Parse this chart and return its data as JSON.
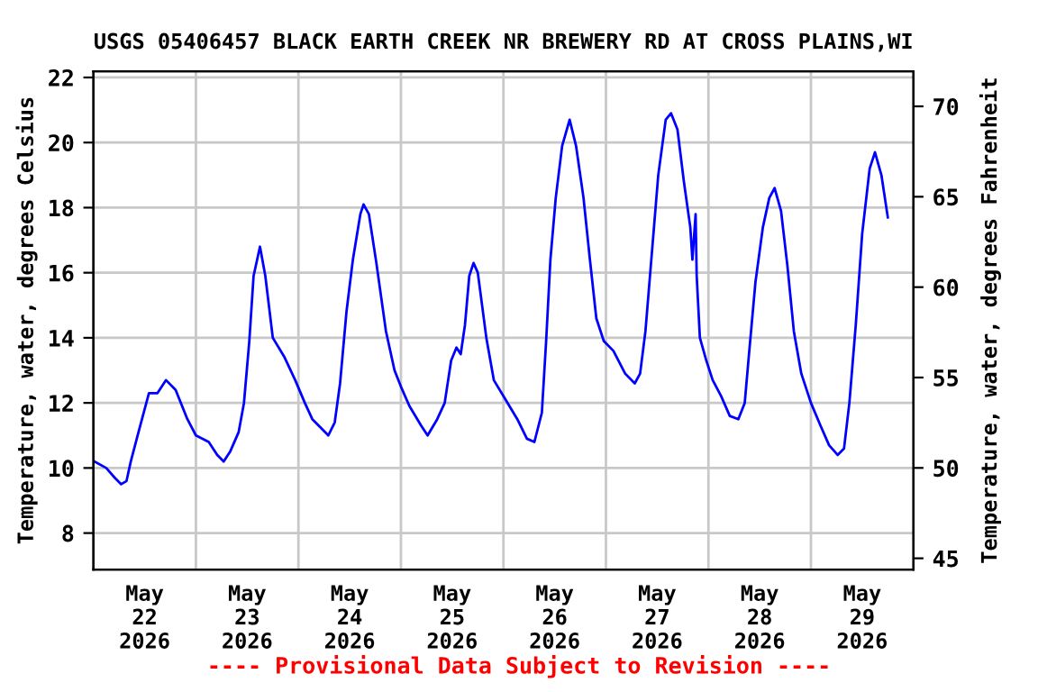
{
  "chart_data": {
    "type": "line",
    "title": "USGS 05406457 BLACK EARTH CREEK NR BREWERY RD AT CROSS PLAINS,WI",
    "ylabel": "Temperature, water, degrees Celsius",
    "y2label": "Temperature, water, degrees Fahrenheit",
    "annotations": [
      "---- Provisional Data Subject to Revision ----"
    ],
    "series": [
      {
        "color": "#0000ff",
        "x": [
          "2026-05-22T00:15",
          "2026-05-22T03:00",
          "2026-05-22T05:00",
          "2026-05-22T06:30",
          "2026-05-22T07:45",
          "2026-05-22T08:45",
          "2026-05-22T10:45",
          "2026-05-22T13:00",
          "2026-05-22T15:00",
          "2026-05-22T17:00",
          "2026-05-22T19:15",
          "2026-05-22T22:00",
          "2026-05-23T00:00",
          "2026-05-23T03:00",
          "2026-05-23T05:00",
          "2026-05-23T06:30",
          "2026-05-23T08:00",
          "2026-05-23T10:00",
          "2026-05-23T11:15",
          "2026-05-23T12:30",
          "2026-05-23T13:30",
          "2026-05-23T15:00",
          "2026-05-23T16:15",
          "2026-05-23T18:00",
          "2026-05-23T20:45",
          "2026-05-23T23:15",
          "2026-05-24T01:30",
          "2026-05-24T03:15",
          "2026-05-24T05:30",
          "2026-05-24T07:00",
          "2026-05-24T08:30",
          "2026-05-24T09:45",
          "2026-05-24T11:15",
          "2026-05-24T12:45",
          "2026-05-24T14:30",
          "2026-05-24T15:15",
          "2026-05-24T16:30",
          "2026-05-24T18:15",
          "2026-05-24T20:30",
          "2026-05-24T22:30",
          "2026-05-25T00:00",
          "2026-05-25T02:00",
          "2026-05-25T04:45",
          "2026-05-25T06:15",
          "2026-05-25T08:30",
          "2026-05-25T10:15",
          "2026-05-25T11:45",
          "2026-05-25T13:00",
          "2026-05-25T14:00",
          "2026-05-25T15:00",
          "2026-05-25T16:00",
          "2026-05-25T17:00",
          "2026-05-25T18:00",
          "2026-05-25T20:00",
          "2026-05-25T21:45",
          "2026-05-26T00:30",
          "2026-05-26T03:15",
          "2026-05-26T05:30",
          "2026-05-26T07:15",
          "2026-05-26T09:00",
          "2026-05-26T10:00",
          "2026-05-26T11:00",
          "2026-05-26T12:15",
          "2026-05-26T13:45",
          "2026-05-26T15:30",
          "2026-05-26T17:00",
          "2026-05-26T18:45",
          "2026-05-26T20:15",
          "2026-05-26T21:45",
          "2026-05-26T23:30",
          "2026-05-27T01:45",
          "2026-05-27T04:30",
          "2026-05-27T06:45",
          "2026-05-27T08:00",
          "2026-05-27T09:15",
          "2026-05-27T10:45",
          "2026-05-27T12:15",
          "2026-05-27T14:00",
          "2026-05-27T15:15",
          "2026-05-27T16:45",
          "2026-05-27T18:15",
          "2026-05-27T19:45",
          "2026-05-27T20:15",
          "2026-05-27T21:00",
          "2026-05-27T21:15",
          "2026-05-27T22:00",
          "2026-05-27T23:30",
          "2026-05-28T01:00",
          "2026-05-28T03:00",
          "2026-05-28T05:00",
          "2026-05-28T07:00",
          "2026-05-28T08:30",
          "2026-05-28T09:30",
          "2026-05-28T11:00",
          "2026-05-28T12:45",
          "2026-05-28T14:15",
          "2026-05-28T15:30",
          "2026-05-28T17:00",
          "2026-05-28T18:30",
          "2026-05-28T20:00",
          "2026-05-28T21:45",
          "2026-05-29T00:00",
          "2026-05-29T02:15",
          "2026-05-29T04:15",
          "2026-05-29T06:15",
          "2026-05-29T07:45",
          "2026-05-29T09:00",
          "2026-05-29T10:30",
          "2026-05-29T12:00",
          "2026-05-29T13:45",
          "2026-05-29T15:00",
          "2026-05-29T16:30",
          "2026-05-29T18:00"
        ],
        "values": [
          10.2,
          10.0,
          9.7,
          9.5,
          9.6,
          10.2,
          11.2,
          12.3,
          12.3,
          12.7,
          12.4,
          11.5,
          11.0,
          10.8,
          10.4,
          10.2,
          10.5,
          11.1,
          12.0,
          13.9,
          15.9,
          16.8,
          15.9,
          14.0,
          13.4,
          12.7,
          12.0,
          11.5,
          11.2,
          11.0,
          11.4,
          12.6,
          14.8,
          16.4,
          17.8,
          18.1,
          17.8,
          16.3,
          14.2,
          13.0,
          12.5,
          11.9,
          11.3,
          11.0,
          11.5,
          12.0,
          13.3,
          13.7,
          13.5,
          14.4,
          15.9,
          16.3,
          16.0,
          14.0,
          12.7,
          12.1,
          11.5,
          10.9,
          10.8,
          11.7,
          13.9,
          16.4,
          18.3,
          19.9,
          20.7,
          19.9,
          18.3,
          16.4,
          14.6,
          13.9,
          13.6,
          12.9,
          12.6,
          12.9,
          14.2,
          16.6,
          19.0,
          20.7,
          20.9,
          20.4,
          18.8,
          17.4,
          16.4,
          17.8,
          15.9,
          14.0,
          13.3,
          12.7,
          12.2,
          11.6,
          11.5,
          12.0,
          13.5,
          15.7,
          17.4,
          18.3,
          18.6,
          17.9,
          16.2,
          14.2,
          12.9,
          12.0,
          11.3,
          10.7,
          10.4,
          10.6,
          12.0,
          14.4,
          17.2,
          19.2,
          19.7,
          19.0,
          17.7
        ]
      }
    ],
    "xlim": [
      "2026-05-22T00:00",
      "2026-05-30T00:00"
    ],
    "xticks": [
      {
        "value": "2026-05-22T12:00",
        "label": "May\n22\n2026"
      },
      {
        "value": "2026-05-23T00:00",
        "label": null
      },
      {
        "value": "2026-05-23T12:00",
        "label": "May\n23\n2026"
      },
      {
        "value": "2026-05-24T00:00",
        "label": null
      },
      {
        "value": "2026-05-24T12:00",
        "label": "May\n24\n2026"
      },
      {
        "value": "2026-05-25T00:00",
        "label": null
      },
      {
        "value": "2026-05-25T12:00",
        "label": "May\n25\n2026"
      },
      {
        "value": "2026-05-26T00:00",
        "label": null
      },
      {
        "value": "2026-05-26T12:00",
        "label": "May\n26\n2026"
      },
      {
        "value": "2026-05-27T00:00",
        "label": null
      },
      {
        "value": "2026-05-27T12:00",
        "label": "May\n27\n2026"
      },
      {
        "value": "2026-05-28T00:00",
        "label": null
      },
      {
        "value": "2026-05-28T12:00",
        "label": "May\n28\n2026"
      },
      {
        "value": "2026-05-29T00:00",
        "label": null
      },
      {
        "value": "2026-05-29T12:00",
        "label": "May\n29\n2026"
      }
    ],
    "ylim": [
      6.88,
      22.19
    ],
    "yticks": [
      8,
      10,
      12,
      14,
      16,
      18,
      20,
      22
    ],
    "y2lim": [
      44.38,
      71.94
    ],
    "y2ticks": [
      45,
      50,
      55,
      60,
      65,
      70
    ],
    "grid": true,
    "line_style": "solid",
    "marker": "none"
  }
}
